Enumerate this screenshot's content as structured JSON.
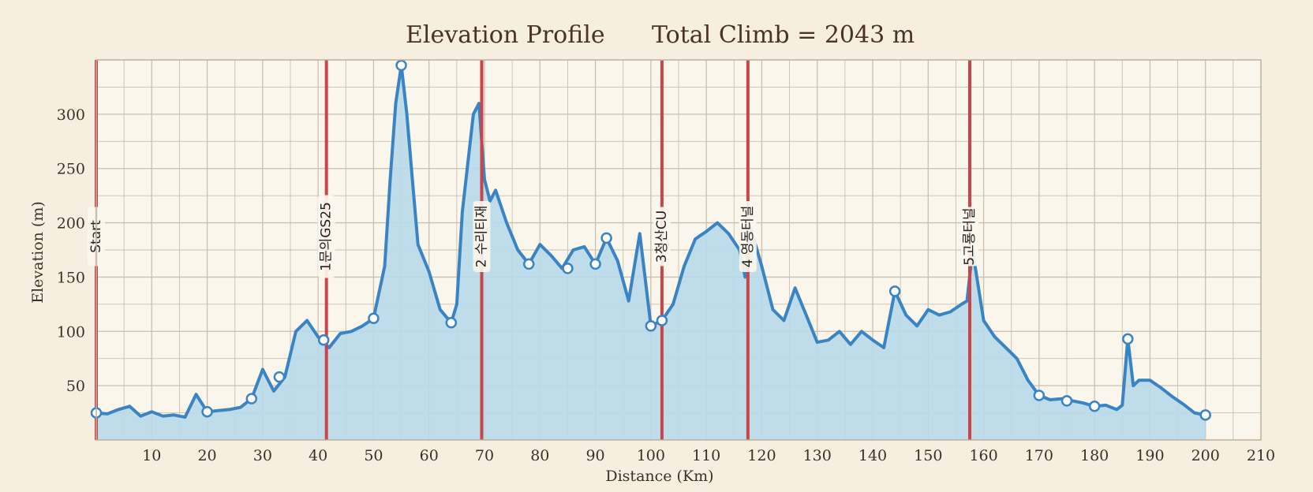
{
  "chart_data": {
    "type": "area",
    "title": "Elevation Profile",
    "subtitle": "Total Climb = 2043 m",
    "xlabel": "Distance (Km)",
    "ylabel": "Elevation (m)",
    "xlim": [
      0,
      210
    ],
    "ylim": [
      0,
      350
    ],
    "x_ticks": [
      10,
      20,
      30,
      40,
      50,
      60,
      70,
      80,
      90,
      100,
      110,
      120,
      130,
      140,
      150,
      160,
      170,
      180,
      190,
      200,
      210
    ],
    "y_ticks": [
      50,
      100,
      150,
      200,
      250,
      300
    ],
    "grid": true,
    "colors": {
      "line": "#3b84c4",
      "fill": "#b7d9ea",
      "marker": "#c8464a",
      "plot_bg": "#fbf6ec",
      "grid": "#cbbfae"
    },
    "series": [
      {
        "x": [
          0,
          2,
          4,
          6,
          8,
          10,
          12,
          14,
          16,
          18,
          20,
          22,
          24,
          26,
          28,
          30,
          32,
          34,
          36,
          38,
          40,
          42,
          44,
          46,
          48,
          50,
          52,
          53,
          54,
          55,
          56,
          57,
          58,
          60,
          62,
          64,
          65,
          66,
          67,
          68,
          69,
          70,
          71,
          72,
          74,
          76,
          78,
          80,
          82,
          84,
          86,
          88,
          90,
          92,
          94,
          96,
          98,
          100,
          102,
          104,
          106,
          108,
          110,
          112,
          114,
          116,
          117,
          118,
          120,
          122,
          124,
          126,
          128,
          130,
          132,
          134,
          136,
          138,
          140,
          142,
          144,
          146,
          148,
          150,
          152,
          154,
          156,
          157,
          158,
          160,
          162,
          164,
          166,
          168,
          170,
          172,
          174,
          176,
          178,
          180,
          182,
          184,
          185,
          186,
          187,
          188,
          190,
          192,
          194,
          196,
          198,
          200
        ],
        "y": [
          25,
          24,
          28,
          31,
          22,
          26,
          22,
          23,
          21,
          42,
          26,
          27,
          28,
          30,
          38,
          65,
          45,
          58,
          100,
          110,
          95,
          85,
          98,
          100,
          105,
          112,
          160,
          240,
          310,
          345,
          300,
          240,
          180,
          155,
          120,
          108,
          125,
          210,
          255,
          300,
          310,
          240,
          220,
          230,
          200,
          175,
          162,
          180,
          170,
          158,
          175,
          178,
          162,
          186,
          165,
          128,
          190,
          105,
          110,
          125,
          160,
          185,
          192,
          200,
          190,
          175,
          150,
          195,
          160,
          120,
          110,
          140,
          115,
          90,
          92,
          100,
          88,
          100,
          92,
          85,
          137,
          115,
          105,
          120,
          115,
          118,
          125,
          128,
          175,
          110,
          95,
          85,
          75,
          55,
          41,
          37,
          38,
          36,
          34,
          31,
          32,
          28,
          32,
          93,
          50,
          55,
          55,
          48,
          40,
          33,
          25,
          23
        ]
      }
    ],
    "markers": [
      {
        "x": 0,
        "label": "Start"
      },
      {
        "x": 41.5,
        "label": "1문의GS25"
      },
      {
        "x": 69.5,
        "label": "2 수리티재"
      },
      {
        "x": 102,
        "label": "3청산CU"
      },
      {
        "x": 117.5,
        "label": "4 영동터널"
      },
      {
        "x": 157.5,
        "label": "5고룡터널"
      }
    ],
    "highlight_points": [
      {
        "x": 0,
        "y": 25
      },
      {
        "x": 20,
        "y": 26
      },
      {
        "x": 28,
        "y": 38
      },
      {
        "x": 33,
        "y": 58
      },
      {
        "x": 41,
        "y": 92
      },
      {
        "x": 50,
        "y": 112
      },
      {
        "x": 55,
        "y": 345
      },
      {
        "x": 64,
        "y": 108
      },
      {
        "x": 78,
        "y": 162
      },
      {
        "x": 85,
        "y": 158
      },
      {
        "x": 90,
        "y": 162
      },
      {
        "x": 92,
        "y": 186
      },
      {
        "x": 100,
        "y": 105
      },
      {
        "x": 102,
        "y": 110
      },
      {
        "x": 144,
        "y": 137
      },
      {
        "x": 170,
        "y": 41
      },
      {
        "x": 175,
        "y": 36
      },
      {
        "x": 180,
        "y": 31
      },
      {
        "x": 186,
        "y": 93
      },
      {
        "x": 200,
        "y": 23
      }
    ]
  }
}
